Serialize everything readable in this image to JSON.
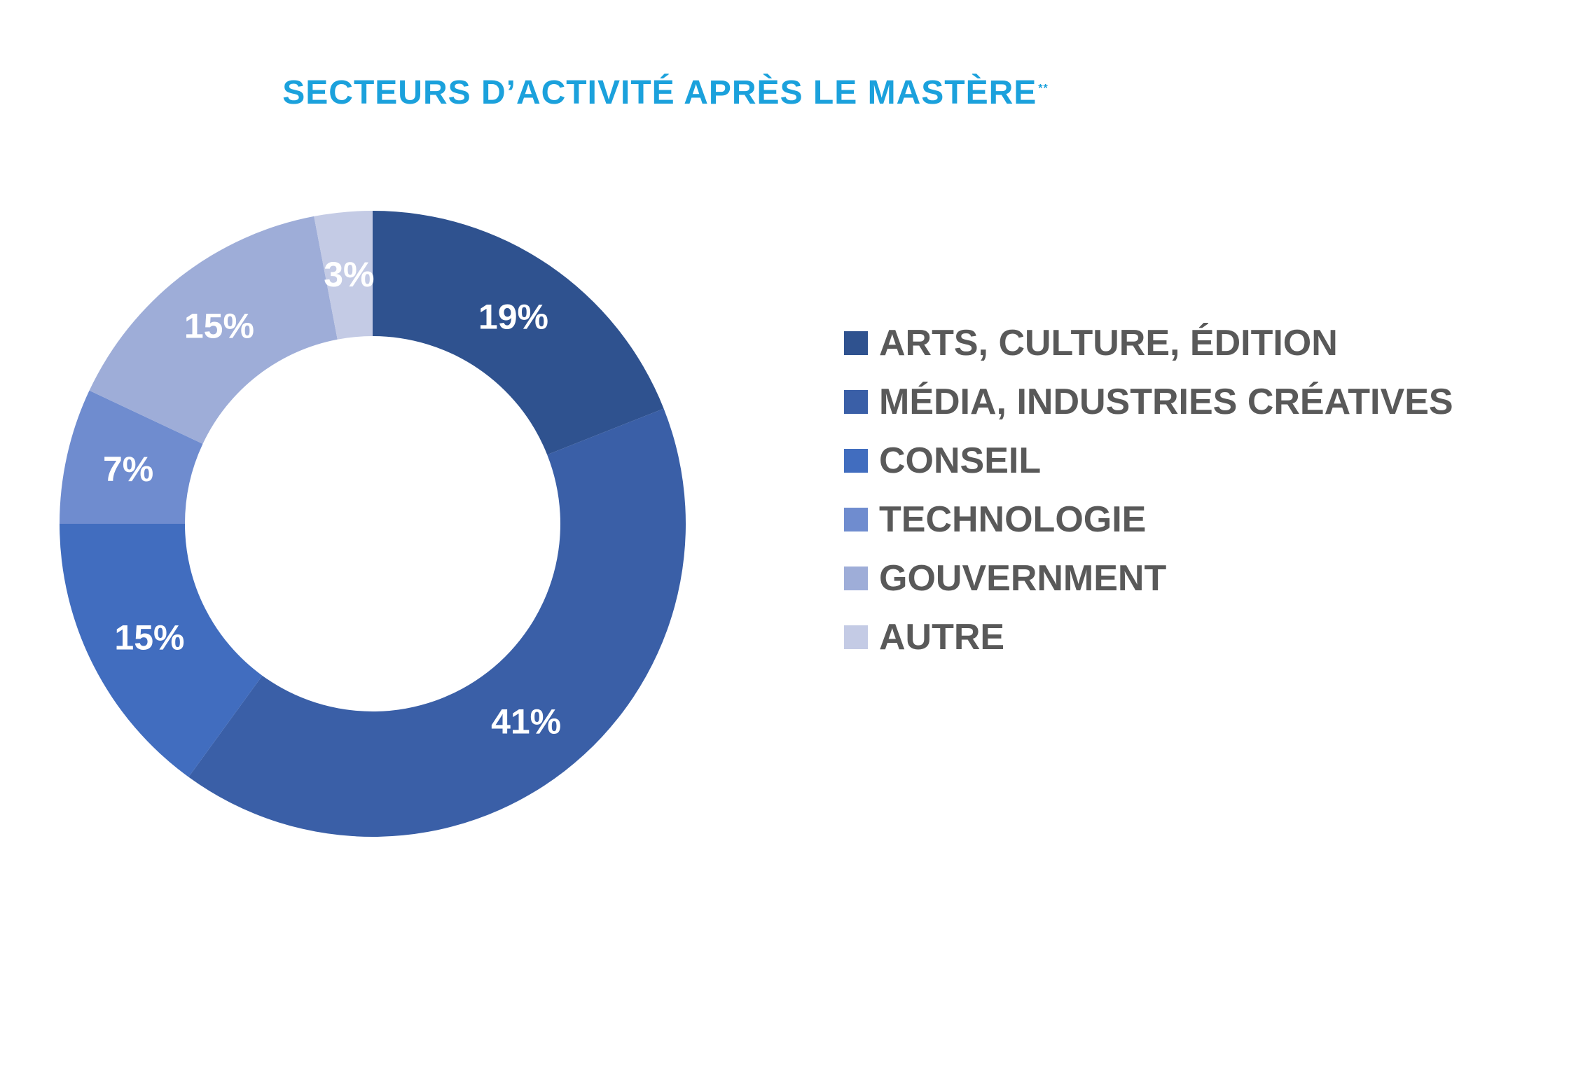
{
  "chart_data": {
    "type": "pie",
    "variant": "donut",
    "title": "SECTEURS D’ACTIVITÉ APRÈS LE MASTÈRE",
    "title_mark": "**",
    "categories": [
      "ARTS, CULTURE, ÉDITION",
      "MÉDIA, INDUSTRIES CRÉATIVES",
      "CONSEIL",
      "TECHNOLOGIE",
      "GOUVERNMENT",
      "AUTRE"
    ],
    "values": [
      19,
      41,
      15,
      7,
      15,
      3
    ],
    "value_labels": [
      "19%",
      "41%",
      "15%",
      "7%",
      "15%",
      "3%"
    ],
    "colors": [
      "#2f528f",
      "#3a5fa7",
      "#416dbf",
      "#6f8ccf",
      "#9eadd8",
      "#c4cbe5"
    ],
    "legend_position": "right",
    "start_angle": "12 o'clock",
    "direction": "clockwise"
  }
}
